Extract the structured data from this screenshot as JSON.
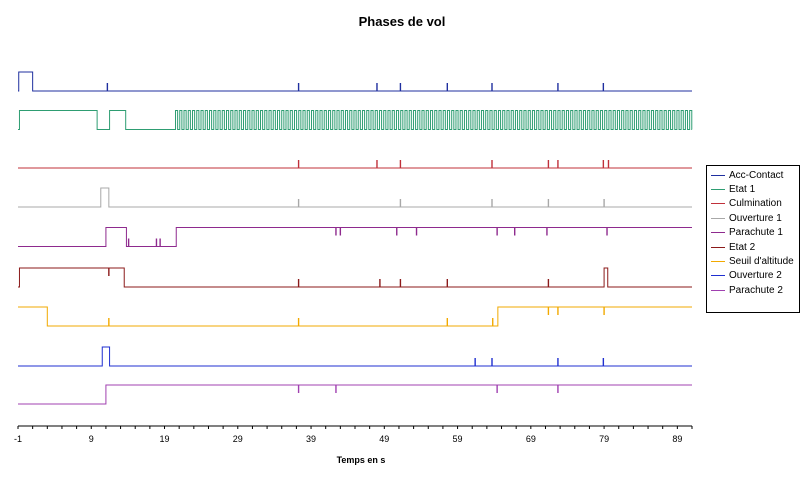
{
  "chart_data": {
    "type": "line",
    "title": "Phases de vol",
    "xlabel": "Temps en s",
    "ylabel": "",
    "xlim": [
      -1,
      91
    ],
    "xticks": [
      -1,
      9,
      19,
      29,
      39,
      49,
      59,
      69,
      79,
      89
    ],
    "legend_position": "right",
    "grid": false,
    "series": [
      {
        "name": "Acc-Contact",
        "color": "#1f2f9f",
        "steps": [
          [
            -1,
            0
          ],
          [
            -0.9,
            1
          ],
          [
            1,
            0
          ]
        ],
        "spikes": [
          11.2,
          37.3,
          48,
          51.2,
          57.6,
          63.7,
          72.7,
          78.9
        ]
      },
      {
        "name": "Etat 1",
        "color": "#2e9d72",
        "steps": [
          [
            -1,
            0
          ],
          [
            -0.8,
            1
          ],
          [
            9.8,
            0
          ],
          [
            11.5,
            1
          ],
          [
            13.7,
            0
          ]
        ],
        "square": {
          "from": 20.5,
          "to": 91,
          "period": 0.58
        }
      },
      {
        "name": "Culmination",
        "color": "#c0303a",
        "steps": [
          [
            -1,
            0
          ]
        ],
        "spikes": [
          37.3,
          48,
          51.2,
          63.7,
          71.4,
          72.7,
          78.9,
          79.6
        ]
      },
      {
        "name": "Ouverture 1",
        "color": "#a8a8a8",
        "steps": [
          [
            -1,
            0
          ],
          [
            10.3,
            1
          ],
          [
            11.4,
            0
          ]
        ],
        "spikes": [
          37.3,
          51.2,
          63.7,
          71.4,
          79.0
        ]
      },
      {
        "name": "Parachute 1",
        "color": "#8e2a8e",
        "steps": [
          [
            -1,
            0
          ],
          [
            11,
            1
          ],
          [
            13.8,
            0
          ],
          [
            20.6,
            1
          ]
        ],
        "spikes": [
          14.1,
          17.9,
          18.4,
          42.4,
          43.0,
          50.7,
          53.4,
          64.4,
          66.8,
          71.2,
          79.4
        ]
      },
      {
        "name": "Etat 2",
        "color": "#8b1a1a",
        "steps": [
          [
            -1,
            0
          ],
          [
            -0.8,
            1
          ],
          [
            13.5,
            0
          ],
          [
            79,
            1
          ],
          [
            79.5,
            0
          ]
        ],
        "spikes": [
          11.4,
          37.3,
          48.4,
          51.2,
          57.6,
          71.4
        ]
      },
      {
        "name": "Seuil d'altitude",
        "color": "#f2a900",
        "steps": [
          [
            -1,
            1
          ],
          [
            3,
            0
          ],
          [
            64.5,
            1
          ]
        ],
        "spikes": [
          11.4,
          37.3,
          57.6,
          63.8,
          71.4,
          72.7,
          79.0
        ]
      },
      {
        "name": "Ouverture 2",
        "color": "#1f2fd0",
        "steps": [
          [
            -1,
            0
          ],
          [
            10.5,
            1
          ],
          [
            11.5,
            0
          ]
        ],
        "spikes": [
          61.4,
          63.7,
          72.7,
          78.9
        ]
      },
      {
        "name": "Parachute 2",
        "color": "#a040b0",
        "steps": [
          [
            -1,
            0
          ],
          [
            11,
            1
          ]
        ],
        "spikes_down": [
          37.3,
          42.4,
          64.4,
          72.7
        ]
      }
    ]
  }
}
